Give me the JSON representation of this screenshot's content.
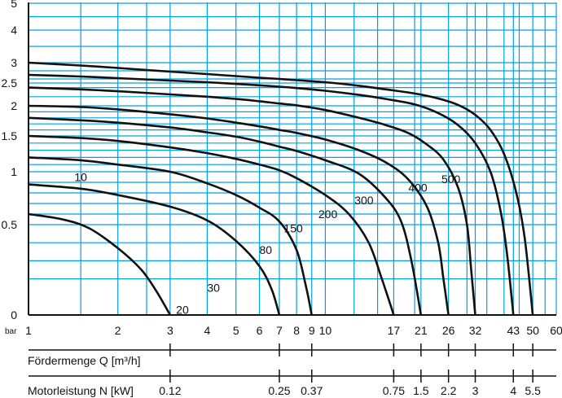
{
  "chart_data": {
    "type": "line",
    "title": "",
    "xlabel": "Fördermenge Q [m³/h]",
    "ylabel": "bar",
    "x_scale": "log",
    "y_scale": "custom",
    "xlim": [
      1,
      60
    ],
    "ylim": [
      0,
      5
    ],
    "x_ticks": [
      1,
      2,
      3,
      4,
      5,
      6,
      7,
      8,
      9,
      10,
      17,
      21,
      26,
      32,
      43,
      50,
      60
    ],
    "x_tick_labels": [
      "1",
      "2",
      "3",
      "4",
      "5",
      "6",
      "7",
      "8",
      "9",
      "10",
      "17",
      "21",
      "26",
      "32",
      "43",
      "50",
      "60"
    ],
    "x_minor_grid": [
      1.5,
      2.5,
      12.5,
      15,
      20,
      30,
      35,
      40,
      45,
      55
    ],
    "y_ticks": [
      0,
      0.5,
      1,
      1.5,
      2,
      2.5,
      3,
      4,
      5
    ],
    "y_tick_labels": [
      "0",
      "0.5",
      "1",
      "1.5",
      "2",
      "2.5",
      "3",
      "4",
      "5"
    ],
    "y_minor_grid": [
      0.2,
      0.3,
      0.4,
      0.6,
      0.7,
      0.8,
      0.9,
      1.1,
      1.2,
      1.3,
      1.4,
      1.6,
      1.7,
      1.8,
      1.9,
      2.2,
      2.4,
      2.6,
      2.8,
      3.5,
      4.5
    ],
    "grid": true,
    "grid_color": "#00a0e0",
    "line_color": "#111111",
    "y_unit_label": "bar",
    "series": [
      {
        "label": "10",
        "label_at": [
          10,
          1.5,
          0.95
        ],
        "points": [
          [
            1,
            0.6
          ],
          [
            1.3,
            0.55
          ],
          [
            1.6,
            0.48
          ],
          [
            2.0,
            0.37
          ],
          [
            2.4,
            0.25
          ],
          [
            2.7,
            0.13
          ],
          [
            3,
            0
          ]
        ]
      },
      {
        "label": "20",
        "label_at": [
          20,
          3.3,
          0.03
        ],
        "points": [
          [
            1,
            0.88
          ],
          [
            1.5,
            0.84
          ],
          [
            2,
            0.78
          ],
          [
            3,
            0.67
          ],
          [
            4,
            0.54
          ],
          [
            5,
            0.41
          ],
          [
            6,
            0.27
          ],
          [
            6.6,
            0.14
          ],
          [
            7,
            0
          ]
        ]
      },
      {
        "label": "30",
        "label_at": [
          30,
          4.2,
          0.15
        ],
        "points": [
          [
            1,
            1.2
          ],
          [
            1.5,
            1.16
          ],
          [
            2,
            1.1
          ],
          [
            3,
            1.0
          ],
          [
            4,
            0.89
          ],
          [
            5,
            0.78
          ],
          [
            6,
            0.66
          ],
          [
            7,
            0.53
          ],
          [
            8,
            0.36
          ],
          [
            8.6,
            0.16
          ],
          [
            9,
            0
          ]
        ]
      },
      {
        "label": "80",
        "label_at": [
          80,
          6.3,
          0.36
        ],
        "points": [
          [
            1,
            1.5
          ],
          [
            1.5,
            1.47
          ],
          [
            2,
            1.43
          ],
          [
            3,
            1.34
          ],
          [
            4,
            1.26
          ],
          [
            5,
            1.18
          ],
          [
            6,
            1.1
          ],
          [
            7,
            1.02
          ],
          [
            8,
            0.94
          ],
          [
            10,
            0.78
          ],
          [
            12,
            0.6
          ],
          [
            14,
            0.4
          ],
          [
            15.5,
            0.2
          ],
          [
            17,
            0
          ]
        ]
      },
      {
        "label": "150",
        "label_at": [
          150,
          7.8,
          0.48
        ],
        "points": [
          [
            1,
            1.8
          ],
          [
            1.5,
            1.76
          ],
          [
            2,
            1.72
          ],
          [
            3,
            1.64
          ],
          [
            4,
            1.56
          ],
          [
            5,
            1.49
          ],
          [
            6,
            1.42
          ],
          [
            7,
            1.35
          ],
          [
            8,
            1.29
          ],
          [
            10,
            1.16
          ],
          [
            13,
            0.98
          ],
          [
            16,
            0.75
          ],
          [
            18,
            0.53
          ],
          [
            19.5,
            0.3
          ],
          [
            21,
            0
          ]
        ]
      },
      {
        "label": "200",
        "label_at": [
          200,
          10.2,
          0.6
        ],
        "points": [
          [
            1,
            2.0
          ],
          [
            1.5,
            1.98
          ],
          [
            2,
            1.94
          ],
          [
            3,
            1.86
          ],
          [
            4,
            1.79
          ],
          [
            5,
            1.72
          ],
          [
            6,
            1.66
          ],
          [
            7,
            1.6
          ],
          [
            8,
            1.55
          ],
          [
            10,
            1.45
          ],
          [
            13,
            1.3
          ],
          [
            16,
            1.13
          ],
          [
            19,
            0.93
          ],
          [
            22,
            0.67
          ],
          [
            24,
            0.4
          ],
          [
            25,
            0.2
          ],
          [
            26,
            0
          ]
        ]
      },
      {
        "label": "300",
        "label_at": [
          300,
          13.5,
          0.73
        ],
        "points": [
          [
            1,
            2.4
          ],
          [
            1.5,
            2.36
          ],
          [
            2,
            2.32
          ],
          [
            3,
            2.25
          ],
          [
            4,
            2.2
          ],
          [
            5,
            2.15
          ],
          [
            6,
            2.1
          ],
          [
            7,
            2.05
          ],
          [
            8,
            2.01
          ],
          [
            10,
            1.93
          ],
          [
            13,
            1.8
          ],
          [
            16,
            1.68
          ],
          [
            19,
            1.55
          ],
          [
            22,
            1.38
          ],
          [
            25,
            1.17
          ],
          [
            28,
            0.85
          ],
          [
            30,
            0.5
          ],
          [
            31,
            0.25
          ],
          [
            32,
            0
          ]
        ]
      },
      {
        "label": "400",
        "label_at": [
          400,
          20.5,
          0.85
        ],
        "points": [
          [
            1,
            2.7
          ],
          [
            1.5,
            2.66
          ],
          [
            2,
            2.62
          ],
          [
            3,
            2.56
          ],
          [
            4,
            2.52
          ],
          [
            5,
            2.48
          ],
          [
            6,
            2.45
          ],
          [
            7,
            2.42
          ],
          [
            8,
            2.39
          ],
          [
            10,
            2.33
          ],
          [
            13,
            2.24
          ],
          [
            16,
            2.15
          ],
          [
            20,
            2.03
          ],
          [
            24,
            1.88
          ],
          [
            28,
            1.68
          ],
          [
            32,
            1.4
          ],
          [
            36,
            1.0
          ],
          [
            39,
            0.62
          ],
          [
            41,
            0.33
          ],
          [
            43,
            0
          ]
        ]
      },
      {
        "label": "500",
        "label_at": [
          500,
          26.5,
          0.93
        ],
        "points": [
          [
            1,
            3.0
          ],
          [
            1.5,
            2.93
          ],
          [
            2,
            2.87
          ],
          [
            3,
            2.78
          ],
          [
            4,
            2.72
          ],
          [
            5,
            2.67
          ],
          [
            6,
            2.63
          ],
          [
            7,
            2.6
          ],
          [
            8,
            2.57
          ],
          [
            10,
            2.52
          ],
          [
            13,
            2.44
          ],
          [
            16,
            2.36
          ],
          [
            20,
            2.27
          ],
          [
            24,
            2.16
          ],
          [
            28,
            2.02
          ],
          [
            32,
            1.85
          ],
          [
            36,
            1.6
          ],
          [
            40,
            1.25
          ],
          [
            44,
            0.8
          ],
          [
            47,
            0.42
          ],
          [
            50,
            0
          ]
        ]
      }
    ],
    "sub_axes": [
      {
        "label": "Fördermenge Q [m³/h]",
        "ticks": [
          1,
          3,
          7,
          9,
          17,
          21,
          26,
          32,
          43,
          50
        ],
        "tick_labels": []
      },
      {
        "label": "Motorleistung N [kW]",
        "ticks": [
          1,
          3,
          7,
          9,
          17,
          21,
          26,
          32,
          43,
          50
        ],
        "tick_labels": [
          "",
          "0.12",
          "0.25",
          "0.37",
          "0.75",
          "1.5",
          "2.2",
          "3",
          "4",
          "5.5"
        ]
      }
    ]
  }
}
